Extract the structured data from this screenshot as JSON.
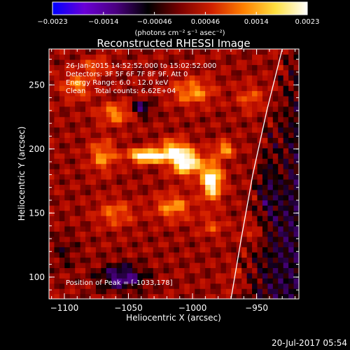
{
  "chart_data": {
    "type": "heatmap",
    "title": "Reconstructed RHESSI Image",
    "xlabel": "Heliocentric X (arcsec)",
    "ylabel": "Heliocentric Y (arcsec)",
    "xlim": [
      -1112,
      -917
    ],
    "ylim": [
      83,
      278
    ],
    "x_ticks": [
      {
        "value": -1100,
        "label": "−1100"
      },
      {
        "value": -1050,
        "label": "−1050"
      },
      {
        "value": -1000,
        "label": "−1000"
      },
      {
        "value": -950,
        "label": "−950"
      }
    ],
    "y_ticks": [
      {
        "value": 100,
        "label": "100"
      },
      {
        "value": 150,
        "label": "150"
      },
      {
        "value": 200,
        "label": "200"
      },
      {
        "value": 250,
        "label": "250"
      }
    ],
    "colorbar": {
      "range": [
        -0.0023,
        0.0023
      ],
      "tick_labels": [
        "−0.0023",
        "−0.0014",
        "−0.00046",
        "0.00046",
        "0.0014",
        "0.0023"
      ],
      "unit_label": "(photons cm⁻² s⁻¹ asec⁻²)",
      "colors": [
        "#0000ff",
        "#6a00d6",
        "#4a0080",
        "#000000",
        "#7a0000",
        "#d02000",
        "#ff8000",
        "#ffe040",
        "#ffffff"
      ]
    },
    "info_lines": [
      "26-Jan-2015 14:52:52.000 to 15:02:52.000",
      "Detectors: 3F 5F 6F 7F 8F 9F, Att 0",
      "Energy Range: 6.0 - 12.0 keV",
      "Clean    Total counts: 6.62E+04"
    ],
    "peak_text": "Position of Peak = [-1033,178]",
    "peak": {
      "x": -1033,
      "y": 178
    },
    "limb_curve": [
      [
        -970,
        83
      ],
      [
        -962,
        130
      ],
      [
        -953,
        180
      ],
      [
        -942,
        230
      ],
      [
        -930,
        278
      ]
    ]
  },
  "timestamp": "20-Jul-2017 05:54"
}
